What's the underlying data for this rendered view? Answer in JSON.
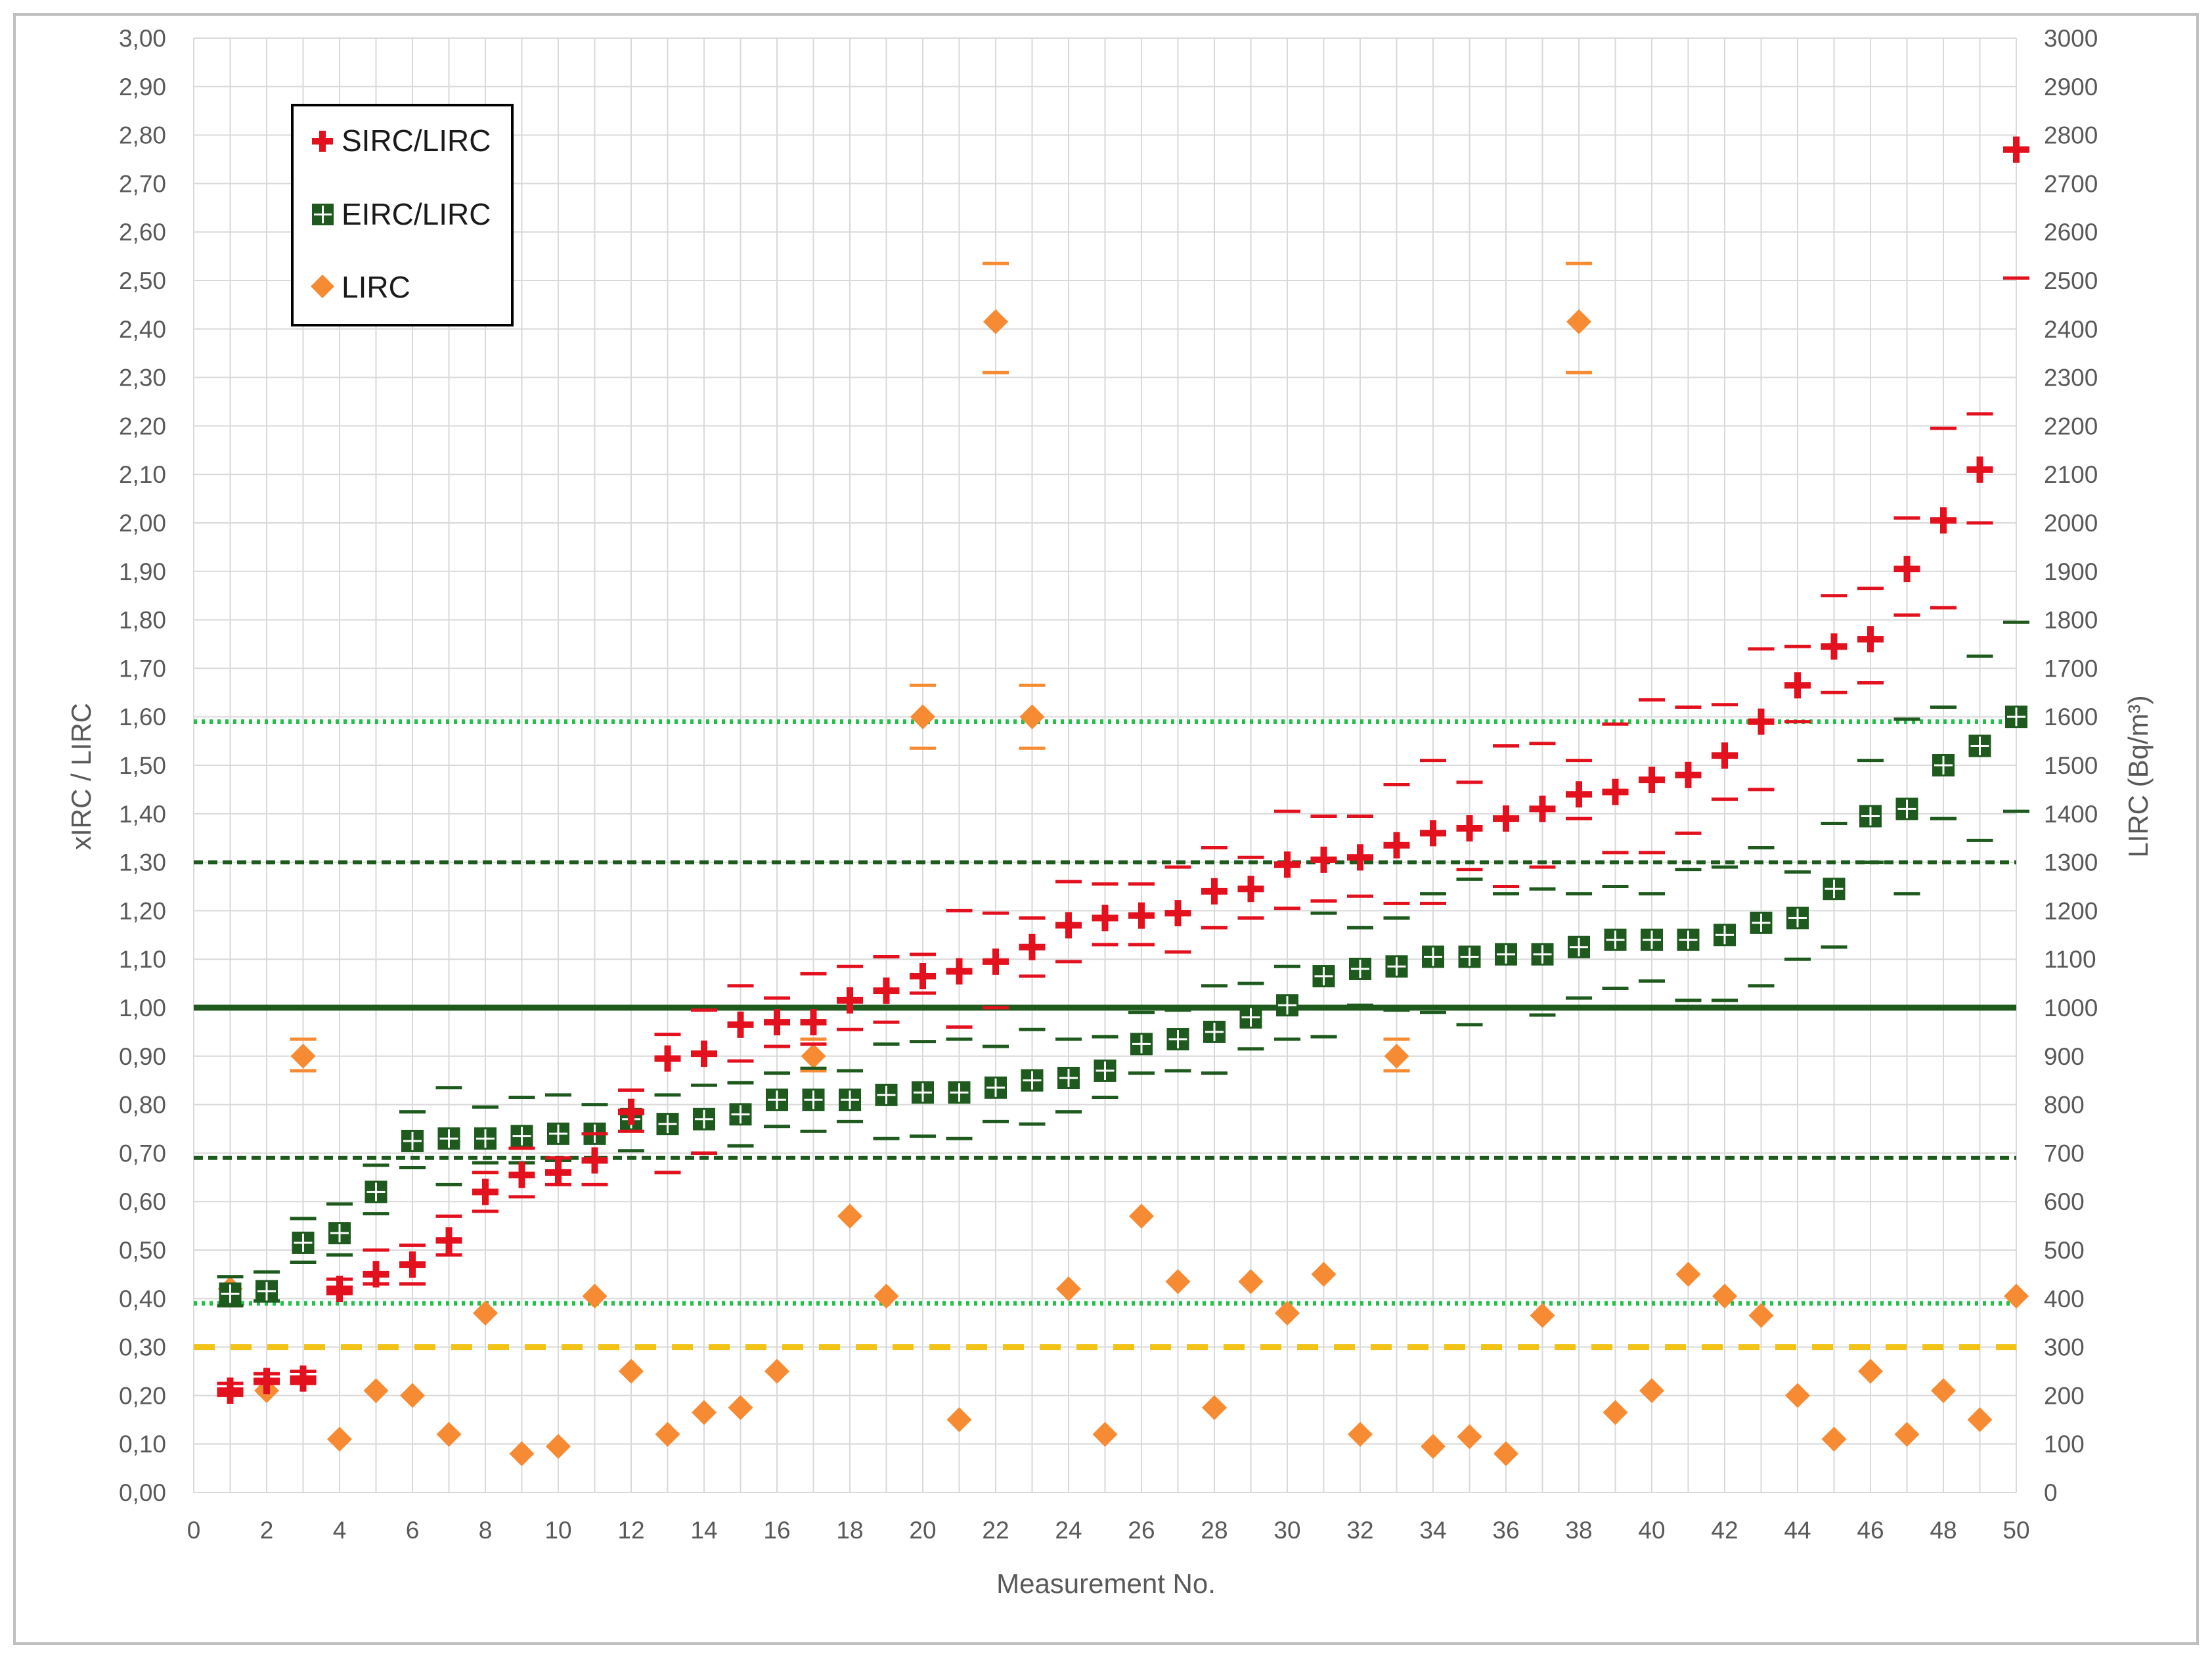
{
  "chart_data": {
    "type": "scatter",
    "title": "",
    "xlabel": "Measurement No.",
    "ylabel": "xIRC / LIRC",
    "y2label": "LIRC (Bq/m³)",
    "xlim": [
      0,
      50
    ],
    "ylim": [
      0,
      3
    ],
    "y2lim": [
      0,
      3000
    ],
    "xticks": [
      "0",
      "2",
      "4",
      "6",
      "8",
      "10",
      "12",
      "14",
      "16",
      "18",
      "20",
      "22",
      "24",
      "26",
      "28",
      "30",
      "32",
      "34",
      "36",
      "38",
      "40",
      "42",
      "44",
      "46",
      "48",
      "50"
    ],
    "yticks": [
      "0,00",
      "0,10",
      "0,20",
      "0,30",
      "0,40",
      "0,50",
      "0,60",
      "0,70",
      "0,80",
      "0,90",
      "1,00",
      "1,10",
      "1,20",
      "1,30",
      "1,40",
      "1,50",
      "1,60",
      "1,70",
      "1,80",
      "1,90",
      "2,00",
      "2,10",
      "2,20",
      "2,30",
      "2,40",
      "2,50",
      "2,60",
      "2,70",
      "2,80",
      "2,90",
      "3,00"
    ],
    "y2ticks": [
      "0",
      "100",
      "200",
      "300",
      "400",
      "500",
      "600",
      "700",
      "800",
      "900",
      "1000",
      "1100",
      "1200",
      "1300",
      "1400",
      "1500",
      "1600",
      "1700",
      "1800",
      "1900",
      "2000",
      "2100",
      "2200",
      "2300",
      "2400",
      "2500",
      "2600",
      "2700",
      "2800",
      "2900",
      "3000"
    ],
    "grid": true,
    "legend_position": "top-left",
    "series": [
      {
        "name": "SIRC/LIRC",
        "marker": "plus",
        "color": "#e3101e",
        "axis": "left",
        "x": [
          1,
          2,
          3,
          4,
          5,
          6,
          7,
          8,
          9,
          10,
          11,
          12,
          13,
          14,
          15,
          16,
          17,
          18,
          19,
          20,
          21,
          22,
          23,
          24,
          25,
          26,
          27,
          28,
          29,
          30,
          31,
          32,
          33,
          34,
          35,
          36,
          37,
          38,
          39,
          40,
          41,
          42,
          43,
          44,
          45,
          46,
          47,
          48,
          49,
          50
        ],
        "y": [
          0.21,
          0.23,
          0.235,
          0.42,
          0.45,
          0.47,
          0.52,
          0.62,
          0.655,
          0.66,
          0.685,
          0.785,
          0.895,
          0.905,
          0.965,
          0.97,
          0.97,
          1.015,
          1.035,
          1.065,
          1.075,
          1.095,
          1.125,
          1.17,
          1.185,
          1.19,
          1.195,
          1.24,
          1.245,
          1.295,
          1.305,
          1.31,
          1.335,
          1.36,
          1.37,
          1.39,
          1.41,
          1.44,
          1.445,
          1.47,
          1.48,
          1.52,
          1.59,
          1.665,
          1.745,
          1.76,
          1.905,
          2.005,
          2.11,
          2.77
        ],
        "err_low": [
          0.2,
          0.225,
          0.225,
          0.41,
          0.43,
          0.43,
          0.49,
          0.58,
          0.61,
          0.635,
          0.635,
          0.745,
          0.66,
          0.7,
          0.89,
          0.92,
          0.925,
          0.955,
          0.97,
          1.03,
          0.96,
          1.0,
          1.065,
          1.095,
          1.13,
          1.13,
          1.115,
          1.165,
          1.185,
          1.205,
          1.22,
          1.23,
          1.215,
          1.215,
          1.285,
          1.25,
          1.29,
          1.39,
          1.32,
          1.32,
          1.36,
          1.43,
          1.45,
          1.59,
          1.65,
          1.67,
          1.81,
          1.825,
          2.0,
          2.505
        ],
        "err_high": [
          0.225,
          0.245,
          0.25,
          0.44,
          0.5,
          0.51,
          0.57,
          0.66,
          0.71,
          0.69,
          0.74,
          0.83,
          0.945,
          0.995,
          1.045,
          1.02,
          1.07,
          1.085,
          1.105,
          1.11,
          1.2,
          1.195,
          1.185,
          1.26,
          1.255,
          1.255,
          1.29,
          1.33,
          1.31,
          1.405,
          1.395,
          1.395,
          1.46,
          1.51,
          1.465,
          1.54,
          1.545,
          1.51,
          1.585,
          1.635,
          1.62,
          1.625,
          1.74,
          1.745,
          1.85,
          1.865,
          2.01,
          2.195,
          2.225,
          2.77
        ]
      },
      {
        "name": "EIRC/LIRC",
        "marker": "square-cross",
        "color": "#1e5a1e",
        "axis": "left",
        "x": [
          1,
          2,
          3,
          4,
          5,
          6,
          7,
          8,
          9,
          10,
          11,
          12,
          13,
          14,
          15,
          16,
          17,
          18,
          19,
          20,
          21,
          22,
          23,
          24,
          25,
          26,
          27,
          28,
          29,
          30,
          31,
          32,
          33,
          34,
          35,
          36,
          37,
          38,
          39,
          40,
          41,
          42,
          43,
          44,
          45,
          46,
          47,
          48,
          49,
          50
        ],
        "y": [
          0.41,
          0.415,
          0.515,
          0.535,
          0.62,
          0.725,
          0.73,
          0.73,
          0.735,
          0.74,
          0.74,
          0.77,
          0.76,
          0.77,
          0.78,
          0.81,
          0.81,
          0.81,
          0.82,
          0.825,
          0.825,
          0.835,
          0.85,
          0.855,
          0.87,
          0.925,
          0.935,
          0.95,
          0.98,
          1.005,
          1.065,
          1.08,
          1.085,
          1.105,
          1.105,
          1.11,
          1.11,
          1.125,
          1.14,
          1.14,
          1.14,
          1.15,
          1.175,
          1.185,
          1.245,
          1.395,
          1.41,
          1.5,
          1.54,
          1.6
        ],
        "err_low": [
          0.385,
          0.395,
          0.475,
          0.49,
          0.575,
          0.67,
          0.635,
          0.68,
          0.68,
          0.685,
          0.685,
          0.705,
          0.66,
          0.7,
          0.715,
          0.755,
          0.745,
          0.765,
          0.73,
          0.735,
          0.73,
          0.765,
          0.76,
          0.785,
          0.815,
          0.865,
          0.87,
          0.865,
          0.915,
          0.935,
          0.94,
          1.005,
          0.995,
          0.99,
          0.965,
          1.0,
          0.985,
          1.02,
          1.04,
          1.055,
          1.015,
          1.015,
          1.045,
          1.1,
          1.125,
          1.3,
          1.235,
          1.39,
          1.345,
          1.405
        ],
        "err_high": [
          0.445,
          0.455,
          0.565,
          0.595,
          0.675,
          0.785,
          0.835,
          0.795,
          0.815,
          0.82,
          0.8,
          0.83,
          0.82,
          0.84,
          0.845,
          0.865,
          0.875,
          0.87,
          0.925,
          0.93,
          0.935,
          0.92,
          0.955,
          0.935,
          0.94,
          0.99,
          0.995,
          1.045,
          1.05,
          1.085,
          1.195,
          1.165,
          1.185,
          1.235,
          1.265,
          1.235,
          1.245,
          1.235,
          1.25,
          1.235,
          1.285,
          1.29,
          1.33,
          1.28,
          1.38,
          1.51,
          1.595,
          1.62,
          1.725,
          1.795
        ]
      },
      {
        "name": "LIRC",
        "marker": "diamond",
        "color": "#f68b33",
        "axis": "right",
        "x": [
          1,
          2,
          3,
          4,
          5,
          6,
          7,
          8,
          9,
          10,
          11,
          12,
          13,
          14,
          15,
          16,
          17,
          18,
          19,
          20,
          21,
          22,
          23,
          24,
          25,
          26,
          27,
          28,
          29,
          30,
          31,
          32,
          33,
          34,
          35,
          36,
          37,
          38,
          39,
          40,
          41,
          42,
          43,
          44,
          45,
          46,
          47,
          48,
          49,
          50
        ],
        "y": [
          420,
          210,
          900,
          110,
          210,
          200,
          120,
          370,
          80,
          95,
          405,
          250,
          120,
          165,
          175,
          250,
          900,
          570,
          405,
          1600,
          150,
          2415,
          1600,
          420,
          120,
          570,
          435,
          175,
          435,
          370,
          450,
          120,
          900,
          95,
          115,
          80,
          365,
          2415,
          165,
          210,
          450,
          405,
          365,
          200,
          110,
          250,
          120,
          210,
          150,
          405
        ],
        "err_low": [
          null,
          null,
          870,
          null,
          null,
          null,
          null,
          null,
          null,
          null,
          null,
          null,
          null,
          null,
          null,
          null,
          870,
          null,
          null,
          1535,
          null,
          2310,
          1535,
          null,
          null,
          null,
          null,
          null,
          null,
          null,
          null,
          null,
          870,
          null,
          null,
          null,
          null,
          2310,
          null,
          null,
          null,
          null,
          null,
          null,
          null,
          null,
          null,
          null,
          null,
          null
        ],
        "err_high": [
          null,
          null,
          935,
          null,
          null,
          null,
          null,
          null,
          null,
          null,
          null,
          null,
          null,
          null,
          null,
          null,
          935,
          null,
          null,
          1665,
          null,
          2535,
          1665,
          null,
          null,
          null,
          null,
          null,
          null,
          null,
          null,
          null,
          935,
          null,
          null,
          null,
          null,
          2535,
          null,
          null,
          null,
          null,
          null,
          null,
          null,
          null,
          null,
          null,
          null,
          null
        ]
      }
    ],
    "reference_lines": [
      {
        "y": 1.0,
        "style": "solid",
        "color": "#1e5a1e",
        "axis": "left"
      },
      {
        "y": 1.3,
        "style": "dashed",
        "color": "#1e5a1e",
        "axis": "left"
      },
      {
        "y": 0.69,
        "style": "dashed",
        "color": "#1e5a1e",
        "axis": "left"
      },
      {
        "y": 1.59,
        "style": "dotted",
        "color": "#22c24a",
        "axis": "left"
      },
      {
        "y": 0.39,
        "style": "dotted",
        "color": "#22c24a",
        "axis": "left"
      },
      {
        "y": 0.3,
        "style": "long-dash",
        "color": "#f2c314",
        "axis": "left"
      }
    ],
    "colors": {
      "grid": "#d9d9d9",
      "frame": "#bfbfbf",
      "text": "#595959",
      "legend_border": "#000000"
    }
  }
}
